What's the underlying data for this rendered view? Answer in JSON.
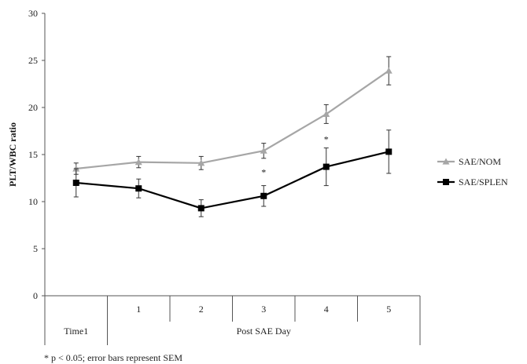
{
  "chart_data": {
    "type": "line",
    "ylabel": "PLT/WBC ratio",
    "ylim": [
      0,
      30
    ],
    "yticks": [
      0,
      5,
      10,
      15,
      20,
      25,
      30
    ],
    "categories": [
      "",
      "1",
      "2",
      "3",
      "4",
      "5"
    ],
    "category_groups": [
      {
        "label": "Time1",
        "span": 1
      },
      {
        "label": "Post SAE Day",
        "span": 5
      }
    ],
    "series": [
      {
        "name": "SAE/NOM",
        "color": "#a6a6a6",
        "marker": "triangle",
        "values": [
          13.5,
          14.2,
          14.1,
          15.4,
          19.3,
          23.9
        ],
        "error": [
          0.6,
          0.6,
          0.7,
          0.8,
          1.0,
          1.5
        ]
      },
      {
        "name": "SAE/SPLEN",
        "color": "#000000",
        "marker": "square",
        "values": [
          12.0,
          11.4,
          9.3,
          10.6,
          13.7,
          15.3
        ],
        "error": [
          1.5,
          1.0,
          0.9,
          1.1,
          2.0,
          2.3
        ]
      }
    ],
    "annotations": [
      {
        "text": "*",
        "category_index": 3,
        "y": 13.3
      },
      {
        "text": "*",
        "category_index": 4,
        "y": 16.8
      }
    ],
    "legend_position": "right",
    "grid": false
  },
  "footnote": "* p < 0.05; error bars represent SEM"
}
